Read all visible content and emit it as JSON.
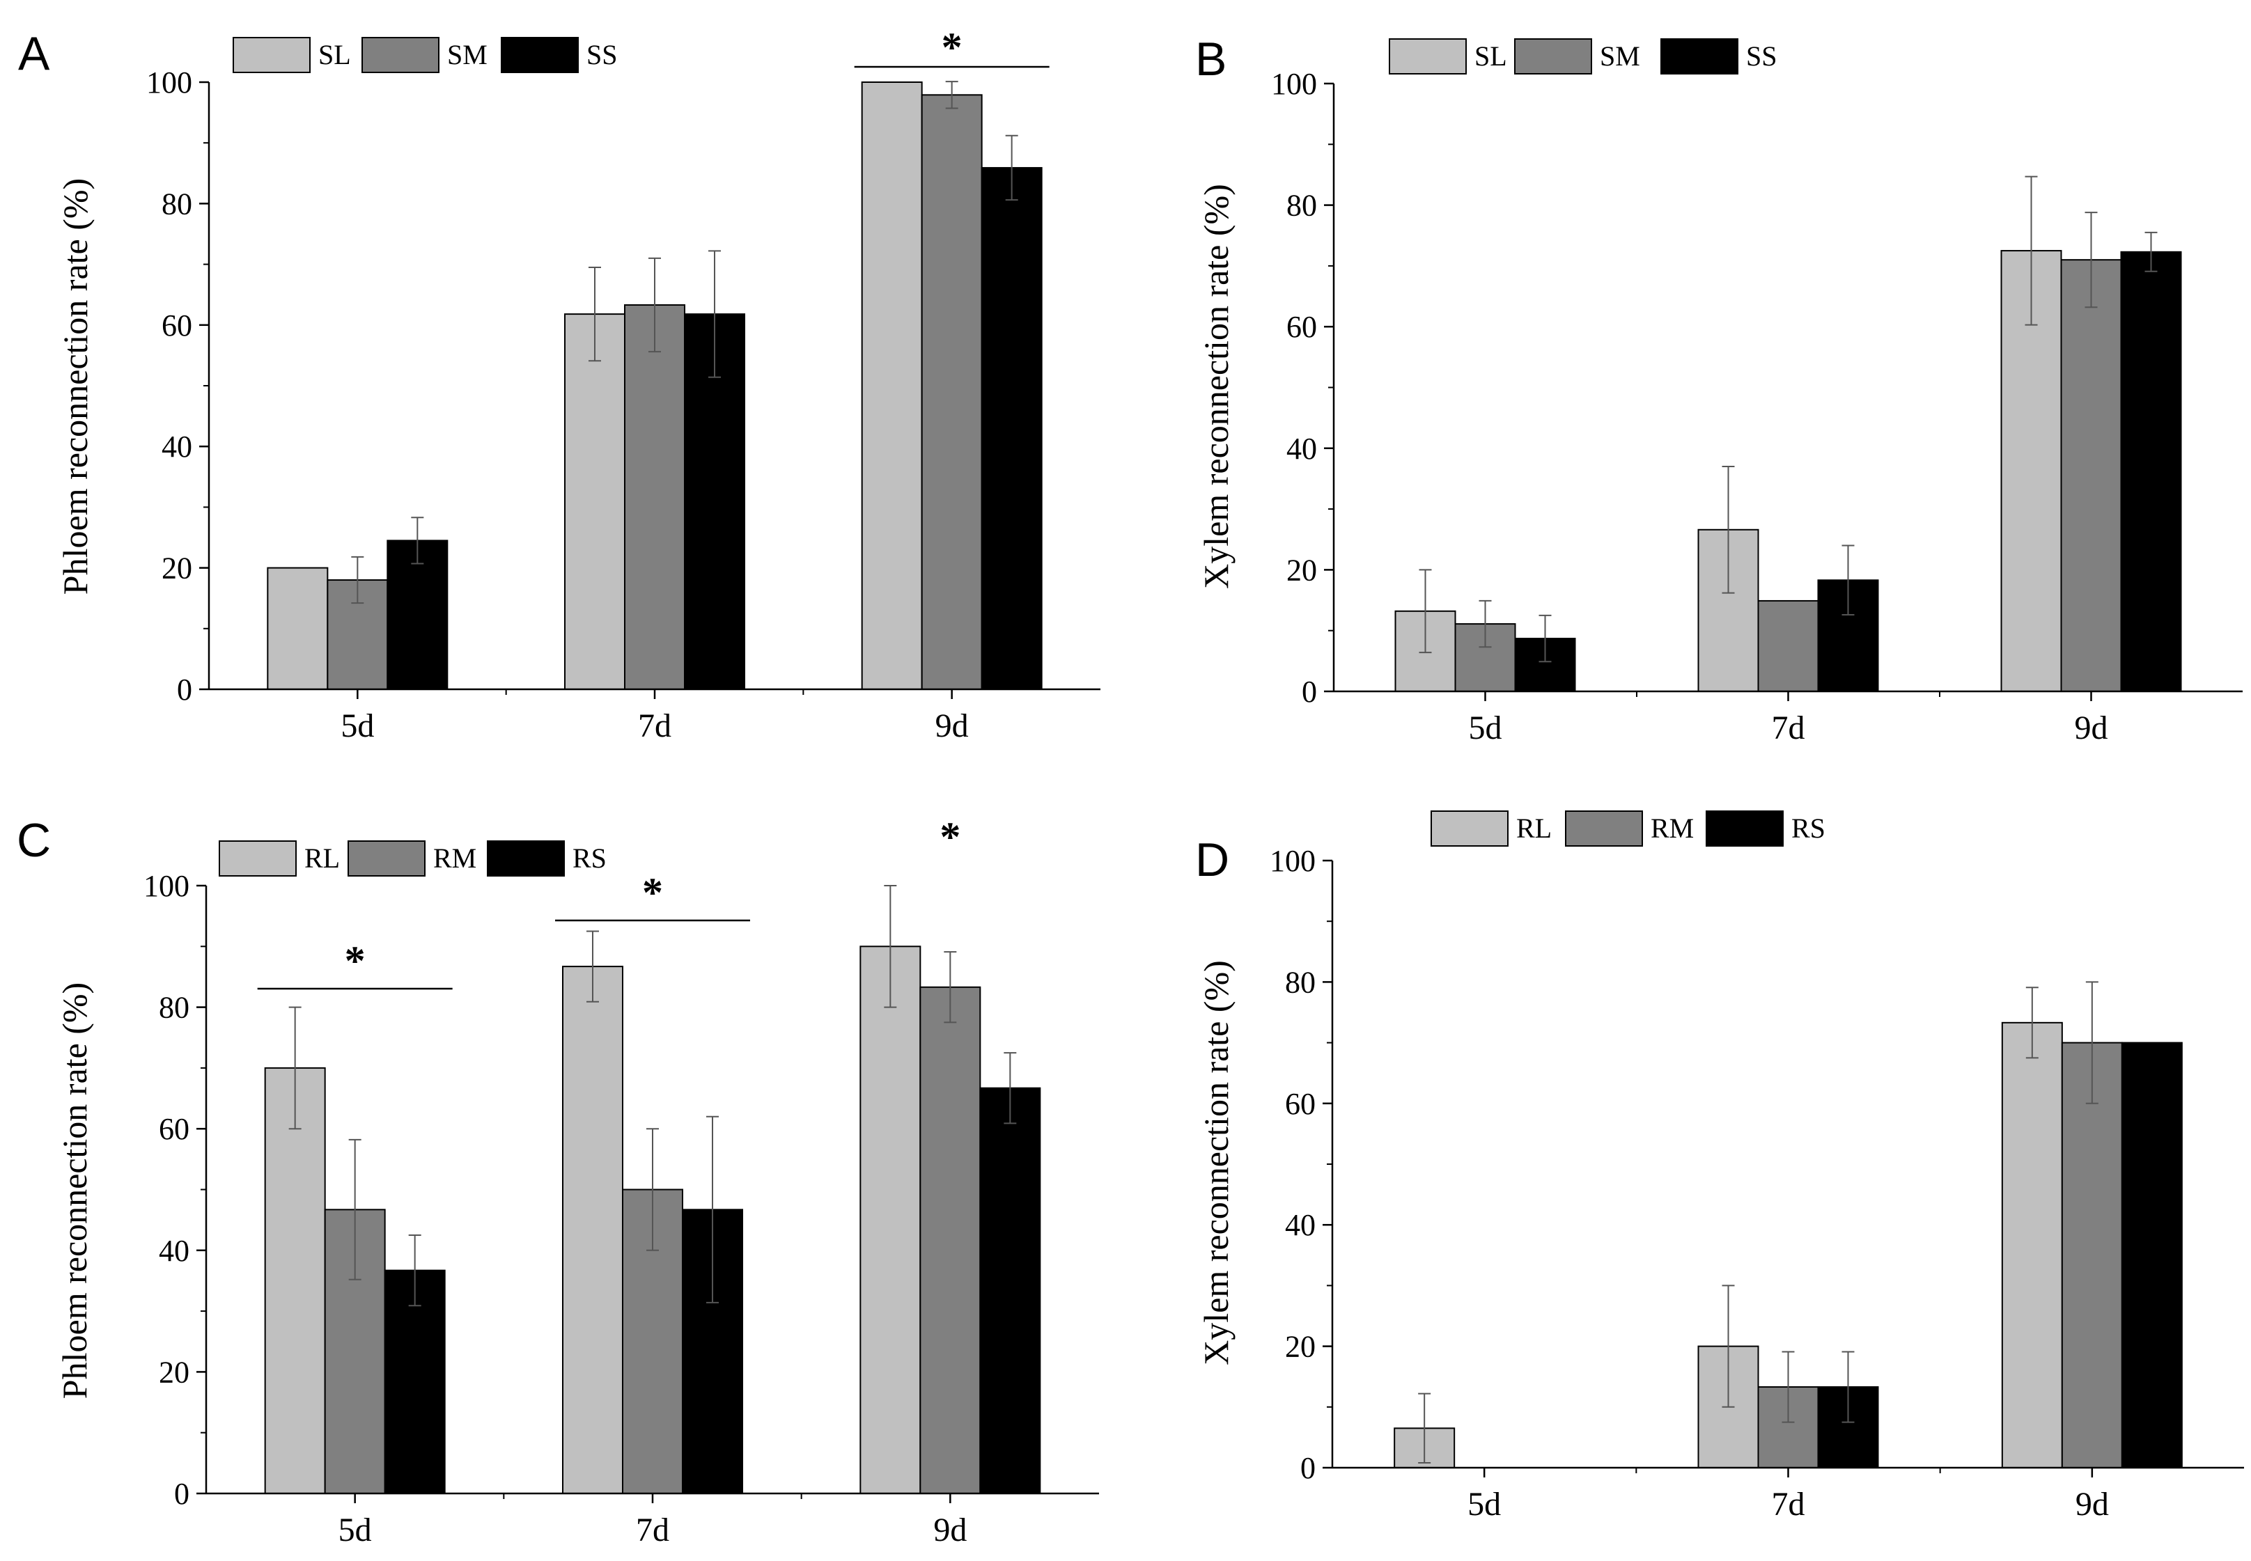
{
  "figure": {
    "colors": {
      "light": "#c0c0c0",
      "medium": "#808080",
      "dark": "#000000"
    }
  },
  "chart_data": [
    {
      "panel": "A",
      "type": "bar",
      "categories": [
        "5d",
        "7d",
        "9d"
      ],
      "ylabel": "Phloem reconnection rate (%)",
      "xlabel": "",
      "ylim": [
        0,
        100
      ],
      "yticks": [
        0,
        20,
        40,
        60,
        80,
        100
      ],
      "legend_position": "top-left",
      "series": [
        {
          "name": "SL",
          "values": [
            20,
            61.8,
            100
          ],
          "errors": [
            null,
            7.7,
            null
          ]
        },
        {
          "name": "SM",
          "values": [
            18,
            63.3,
            97.9
          ],
          "errors": [
            3.8,
            7.7,
            2.2
          ]
        },
        {
          "name": "SS",
          "values": [
            24.5,
            61.8,
            85.9
          ],
          "errors": [
            3.8,
            10.4,
            5.3
          ]
        }
      ],
      "significance": [
        {
          "label": "*",
          "category": "9d",
          "bracket": true
        }
      ]
    },
    {
      "panel": "B",
      "type": "bar",
      "categories": [
        "5d",
        "7d",
        "9d"
      ],
      "ylabel": "Xylem reconnection rate (%)",
      "xlabel": "",
      "ylim": [
        0,
        100
      ],
      "yticks": [
        0,
        20,
        40,
        60,
        80,
        100
      ],
      "legend_position": "top-left",
      "series": [
        {
          "name": "SL",
          "values": [
            13.2,
            26.6,
            72.5
          ],
          "errors": [
            6.8,
            10.4,
            12.2
          ]
        },
        {
          "name": "SM",
          "values": [
            11.1,
            14.9,
            71
          ],
          "errors": [
            3.8,
            null,
            7.8
          ]
        },
        {
          "name": "SS",
          "values": [
            8.7,
            18.3,
            72.3
          ],
          "errors": [
            3.8,
            5.7,
            3.2
          ]
        }
      ],
      "significance": []
    },
    {
      "panel": "C",
      "type": "bar",
      "categories": [
        "5d",
        "7d",
        "9d"
      ],
      "ylabel": "Phloem reconnection rate (%)",
      "xlabel": "",
      "ylim": [
        0,
        100
      ],
      "yticks": [
        0,
        20,
        40,
        60,
        80,
        100
      ],
      "legend_position": "top-left",
      "series": [
        {
          "name": "RL",
          "values": [
            70,
            86.7,
            90
          ],
          "errors": [
            10,
            5.8,
            10
          ]
        },
        {
          "name": "RM",
          "values": [
            46.7,
            50,
            83.3
          ],
          "errors": [
            11.5,
            10,
            5.8
          ]
        },
        {
          "name": "RS",
          "values": [
            36.7,
            46.7,
            66.7
          ],
          "errors": [
            5.8,
            15.3,
            5.8
          ]
        }
      ],
      "significance": [
        {
          "label": "*",
          "category": "5d",
          "bracket": true
        },
        {
          "label": "*",
          "category": "7d",
          "bracket": true
        },
        {
          "label": "*",
          "category": "9d",
          "bracket": false
        }
      ]
    },
    {
      "panel": "D",
      "type": "bar",
      "categories": [
        "5d",
        "7d",
        "9d"
      ],
      "ylabel": "Xylem reconnection rate (%)",
      "xlabel": "",
      "ylim": [
        0,
        100
      ],
      "yticks": [
        0,
        20,
        40,
        60,
        80,
        100
      ],
      "legend_position": "top-left",
      "series": [
        {
          "name": "RL",
          "values": [
            6.5,
            20,
            73.3
          ],
          "errors": [
            5.7,
            10,
            5.8
          ]
        },
        {
          "name": "RM",
          "values": [
            0,
            13.3,
            70
          ],
          "errors": [
            null,
            5.8,
            10
          ]
        },
        {
          "name": "RS",
          "values": [
            0,
            13.3,
            70
          ],
          "errors": [
            null,
            5.8,
            null
          ]
        }
      ],
      "significance": []
    }
  ]
}
